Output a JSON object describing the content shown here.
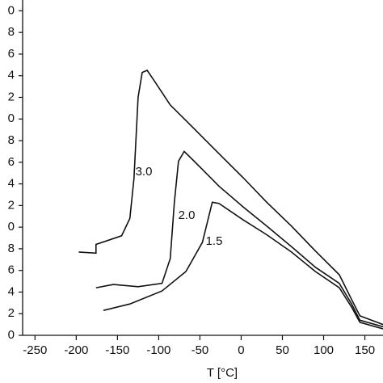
{
  "chart_data": {
    "type": "line",
    "xlabel": "T [°C]",
    "xlim": [
      -265,
      172
    ],
    "ylim": [
      0,
      3.1
    ],
    "xticks": [
      -250,
      -200,
      -150,
      -100,
      -50,
      0,
      50,
      100,
      150
    ],
    "yticks": [
      0,
      {
        "value": 0.2,
        "label": "2"
      },
      {
        "value": 0.4,
        "label": "4"
      },
      {
        "value": 0.6,
        "label": "6"
      },
      {
        "value": 0.8,
        "label": "8"
      },
      {
        "value": 1.0,
        "label": "0"
      },
      {
        "value": 1.2,
        "label": "2"
      },
      {
        "value": 1.4,
        "label": "4"
      },
      {
        "value": 1.6,
        "label": "6"
      },
      {
        "value": 1.8,
        "label": "8"
      },
      {
        "value": 2.0,
        "label": "0"
      },
      {
        "value": 2.2,
        "label": "2"
      },
      {
        "value": 2.4,
        "label": "4"
      },
      {
        "value": 2.6,
        "label": "6"
      },
      {
        "value": 2.8,
        "label": "8"
      },
      {
        "value": 3.0,
        "label": "0"
      }
    ],
    "series": [
      {
        "name": "3.0",
        "color": "#111111",
        "x": [
          -197,
          -176,
          -176,
          -145,
          -135,
          -130,
          -125,
          -120,
          -114,
          -106,
          -86,
          -57,
          -27,
          2,
          31,
          61,
          90,
          119,
          134,
          144,
          172
        ],
        "values": [
          0.77,
          0.76,
          0.84,
          0.92,
          1.08,
          1.45,
          2.2,
          2.43,
          2.45,
          2.36,
          2.13,
          1.91,
          1.68,
          1.46,
          1.23,
          1.01,
          0.78,
          0.56,
          0.33,
          0.18,
          0.1
        ]
      },
      {
        "name": "2.0",
        "color": "#111111",
        "x": [
          -176,
          -155,
          -125,
          -96,
          -86,
          -81,
          -76,
          -69,
          -57,
          -27,
          2,
          31,
          61,
          90,
          119,
          134,
          144,
          172
        ],
        "values": [
          0.44,
          0.47,
          0.45,
          0.48,
          0.71,
          1.23,
          1.61,
          1.7,
          1.61,
          1.38,
          1.19,
          1.01,
          0.82,
          0.63,
          0.48,
          0.29,
          0.14,
          0.08
        ]
      },
      {
        "name": "1.5",
        "color": "#111111",
        "x": [
          -167,
          -135,
          -96,
          -67,
          -47,
          -35,
          -27,
          2,
          31,
          61,
          90,
          119,
          134,
          144,
          172
        ],
        "values": [
          0.23,
          0.29,
          0.41,
          0.59,
          0.86,
          1.23,
          1.22,
          1.07,
          0.93,
          0.77,
          0.59,
          0.44,
          0.26,
          0.12,
          0.06
        ]
      }
    ]
  }
}
